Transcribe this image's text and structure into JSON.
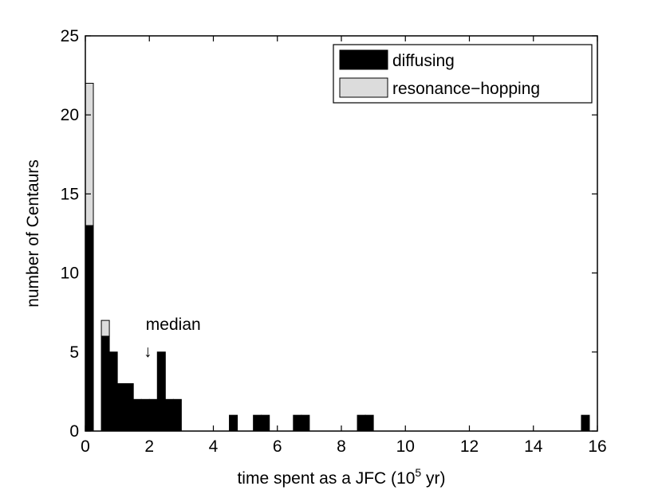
{
  "chart_data": {
    "type": "bar",
    "stacked": true,
    "xlabel_main": "time spent as a JFC (10",
    "xlabel_sup": "5",
    "xlabel_end": " yr)",
    "ylabel": "number of Centaurs",
    "xlim": [
      0,
      16
    ],
    "ylim": [
      0,
      25
    ],
    "xticks": [
      0,
      2,
      4,
      6,
      8,
      10,
      12,
      14,
      16
    ],
    "yticks": [
      0,
      5,
      10,
      15,
      20,
      25
    ],
    "grid": false,
    "legend_position": "top-right",
    "bin_width": 0.25,
    "bin_starts": [
      0,
      0.25,
      0.5,
      0.75,
      1.0,
      1.25,
      1.5,
      1.75,
      2.0,
      2.25,
      2.5,
      2.75,
      3.0,
      3.25,
      3.5,
      3.75,
      4.5,
      5.25,
      5.5,
      6.5,
      6.75,
      8.5,
      8.75,
      15.5
    ],
    "series": [
      {
        "name": "diffusing",
        "color": "#000000",
        "values": [
          13,
          0,
          6,
          5,
          3,
          3,
          2,
          2,
          2,
          5,
          2,
          2,
          0,
          0,
          0,
          0,
          1,
          1,
          1,
          1,
          1,
          1,
          1,
          1
        ]
      },
      {
        "name": "resonance−hopping",
        "color": "#dcdcdc",
        "values": [
          9,
          0,
          1,
          0,
          0,
          0,
          0,
          0,
          0,
          0,
          0,
          0,
          0,
          0,
          0,
          0,
          0,
          0,
          0,
          0,
          0,
          0,
          0,
          0
        ]
      }
    ],
    "annotation": {
      "text": "median",
      "x": 1.95,
      "arrow_glyph": "↓"
    }
  }
}
